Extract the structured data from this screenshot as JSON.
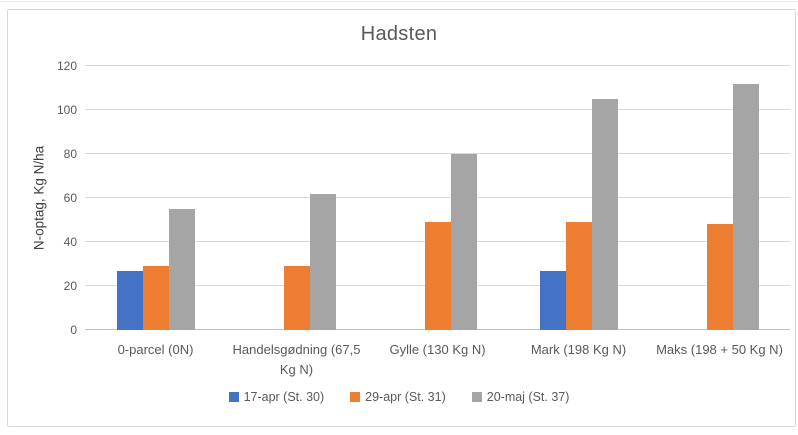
{
  "chart_data": {
    "type": "bar",
    "title": "Hadsten",
    "xlabel": "",
    "ylabel": "N-optag, Kg N/ha",
    "ylim": [
      0,
      120
    ],
    "ytick_step": 20,
    "grid": true,
    "legend_position": "bottom",
    "categories": [
      "0-parcel (0N)",
      "Handelsgødning (67,5 Kg N)",
      "Gylle (130 Kg N)",
      "Mark (198 Kg N)",
      "Maks (198 + 50 Kg N)"
    ],
    "series": [
      {
        "name": "17-apr (St. 30)",
        "color": "#4472C4",
        "values": [
          27,
          0,
          0,
          27,
          0
        ]
      },
      {
        "name": "29-apr (St. 31)",
        "color": "#ED7D31",
        "values": [
          29,
          29,
          49,
          49,
          48
        ]
      },
      {
        "name": "20-maj (St. 37)",
        "color": "#A5A5A5",
        "values": [
          55,
          62,
          80,
          105,
          112
        ]
      }
    ]
  },
  "colors": {
    "title_text": "#595959",
    "axis_text": "#595959",
    "y_title_text": "#404040",
    "gridline": "#D9D9D9",
    "axis_line": "#BFBFBF",
    "frame_border": "#D9D9D9",
    "background": "#FFFFFF"
  }
}
